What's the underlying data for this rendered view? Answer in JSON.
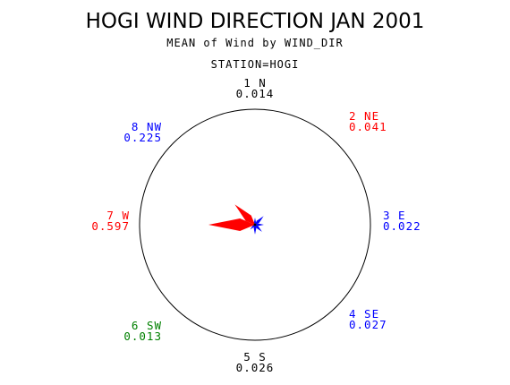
{
  "chart_data": {
    "type": "wind-rose",
    "title": "HOGI WIND DIRECTION JAN 2001",
    "subtitle": "MEAN of Wind by WIND_DIR",
    "station_label": "STATION=HOGI",
    "directions": [
      {
        "label": "1 N",
        "value": 0.014,
        "value_text": "0.014",
        "angle": 0,
        "color": "#000000"
      },
      {
        "label": "2 NE",
        "value": 0.041,
        "value_text": "0.041",
        "angle": 45,
        "color": "#ff0000"
      },
      {
        "label": "3 E",
        "value": 0.022,
        "value_text": "0.022",
        "angle": 90,
        "color": "#0000ff"
      },
      {
        "label": "4 SE",
        "value": 0.027,
        "value_text": "0.027",
        "angle": 135,
        "color": "#0000ff"
      },
      {
        "label": "5 S",
        "value": 0.026,
        "value_text": "0.026",
        "angle": 180,
        "color": "#000000"
      },
      {
        "label": "6 SW",
        "value": 0.013,
        "value_text": "0.013",
        "angle": 225,
        "color": "#008000"
      },
      {
        "label": "7 W",
        "value": 0.597,
        "value_text": "0.597",
        "angle": 270,
        "color": "#ff0000"
      },
      {
        "label": "8 NW",
        "value": 0.225,
        "value_text": "0.225",
        "angle": 315,
        "color": "#0000ff"
      }
    ],
    "rose_color_low": "#0000ff",
    "rose_color_high": "#ff0000",
    "circle_color": "#000000"
  }
}
